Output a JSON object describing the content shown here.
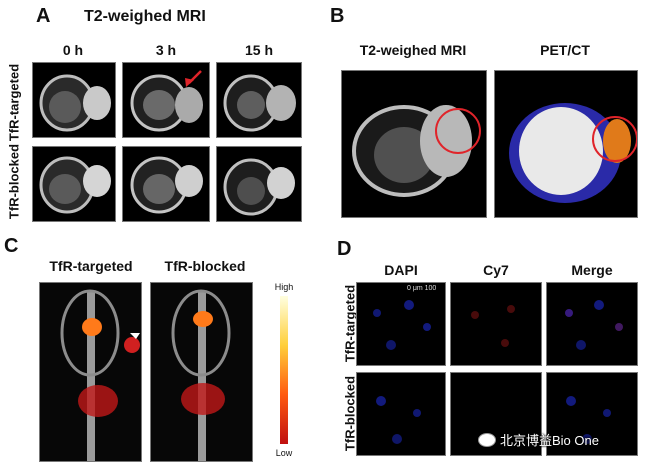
{
  "panelA": {
    "letter": "A",
    "title": "T2-weighed MRI",
    "times": [
      "0 h",
      "3 h",
      "15 h"
    ],
    "rows": [
      "TfR-targeted",
      "TfR-blocked"
    ]
  },
  "panelB": {
    "letter": "B",
    "col1": "T2-weighed MRI",
    "col2": "PET/CT"
  },
  "panelC": {
    "letter": "C",
    "col1": "TfR-targeted",
    "col2": "TfR-blocked",
    "scale_high": "High",
    "scale_low": "Low"
  },
  "panelD": {
    "letter": "D",
    "cols": [
      "DAPI",
      "Cy7",
      "Merge"
    ],
    "rows": [
      "TfR-targeted",
      "TfR-blocked"
    ],
    "scalebar": "0 μm 100"
  },
  "watermark": "北京博益Bio One",
  "colors": {
    "arrow": "#e0242a",
    "circle": "#e0242a",
    "dapi": "#1e2bd0",
    "cy7": "#a01818"
  }
}
